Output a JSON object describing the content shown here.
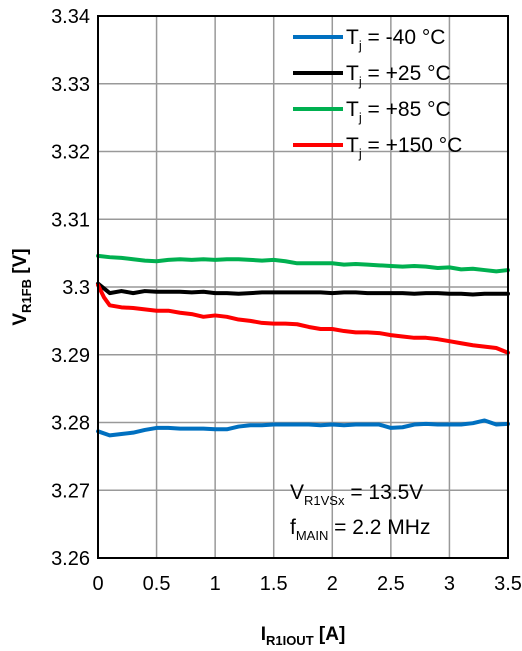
{
  "chart_data": {
    "type": "line",
    "title": "",
    "xlabel": {
      "main": "I",
      "sub": "R1IOUT",
      "unit": " [A]"
    },
    "ylabel": {
      "main": "V",
      "sub": "R1FB",
      "unit": " [V]"
    },
    "xlim": [
      0,
      3.5
    ],
    "ylim": [
      3.26,
      3.34
    ],
    "x_ticks": [
      0,
      0.5,
      1,
      1.5,
      2,
      2.5,
      3,
      3.5
    ],
    "x_tick_labels": [
      "0",
      "0.5",
      "1",
      "1.5",
      "2",
      "2.5",
      "3",
      "3.5"
    ],
    "y_ticks": [
      3.26,
      3.27,
      3.28,
      3.29,
      3.3,
      3.31,
      3.32,
      3.33,
      3.34
    ],
    "y_tick_labels": [
      "3.26",
      "3.27",
      "3.28",
      "3.29",
      "3.3",
      "3.31",
      "3.32",
      "3.33",
      "3.34"
    ],
    "grid": true,
    "legend_position": "top-right",
    "annotation": {
      "line1": {
        "main": "V",
        "sub": "R1VSx",
        "rest": " = 13.5V"
      },
      "line2": {
        "main": "f",
        "sub": "MAIN",
        "rest": " = 2.2 MHz"
      }
    },
    "series": [
      {
        "name": {
          "main": "T",
          "sub": "j",
          "rest": " = -40 °C"
        },
        "color": "#0070C0",
        "points": [
          [
            0,
            3.2787
          ],
          [
            0.1,
            3.2781
          ],
          [
            0.2,
            3.2783
          ],
          [
            0.3,
            3.2785
          ],
          [
            0.4,
            3.2789
          ],
          [
            0.5,
            3.2792
          ],
          [
            0.6,
            3.2792
          ],
          [
            0.7,
            3.2791
          ],
          [
            0.8,
            3.2791
          ],
          [
            0.9,
            3.2791
          ],
          [
            1.0,
            3.279
          ],
          [
            1.1,
            3.279
          ],
          [
            1.2,
            3.2794
          ],
          [
            1.3,
            3.2796
          ],
          [
            1.4,
            3.2796
          ],
          [
            1.5,
            3.2797
          ],
          [
            1.6,
            3.2797
          ],
          [
            1.7,
            3.2797
          ],
          [
            1.8,
            3.2797
          ],
          [
            1.9,
            3.2796
          ],
          [
            2.0,
            3.2797
          ],
          [
            2.1,
            3.2796
          ],
          [
            2.2,
            3.2797
          ],
          [
            2.3,
            3.2797
          ],
          [
            2.4,
            3.2797
          ],
          [
            2.5,
            3.2792
          ],
          [
            2.6,
            3.2793
          ],
          [
            2.7,
            3.2797
          ],
          [
            2.8,
            3.2798
          ],
          [
            2.9,
            3.2797
          ],
          [
            3.0,
            3.2797
          ],
          [
            3.1,
            3.2797
          ],
          [
            3.2,
            3.2799
          ],
          [
            3.3,
            3.2803
          ],
          [
            3.4,
            3.2797
          ],
          [
            3.5,
            3.2798
          ]
        ]
      },
      {
        "name": {
          "main": "T",
          "sub": "j",
          "rest": " = +25 °C"
        },
        "color": "#000000",
        "points": [
          [
            0,
            3.3005
          ],
          [
            0.05,
            3.2998
          ],
          [
            0.1,
            3.2991
          ],
          [
            0.2,
            3.2994
          ],
          [
            0.3,
            3.2991
          ],
          [
            0.4,
            3.2994
          ],
          [
            0.5,
            3.2993
          ],
          [
            0.6,
            3.2993
          ],
          [
            0.7,
            3.2993
          ],
          [
            0.8,
            3.2992
          ],
          [
            0.9,
            3.2993
          ],
          [
            1.0,
            3.2991
          ],
          [
            1.1,
            3.2991
          ],
          [
            1.2,
            3.299
          ],
          [
            1.3,
            3.2991
          ],
          [
            1.4,
            3.2992
          ],
          [
            1.5,
            3.2992
          ],
          [
            1.6,
            3.2992
          ],
          [
            1.7,
            3.2992
          ],
          [
            1.8,
            3.2992
          ],
          [
            1.9,
            3.2992
          ],
          [
            2.0,
            3.2991
          ],
          [
            2.1,
            3.2992
          ],
          [
            2.2,
            3.2992
          ],
          [
            2.3,
            3.2991
          ],
          [
            2.4,
            3.2991
          ],
          [
            2.5,
            3.2991
          ],
          [
            2.6,
            3.2991
          ],
          [
            2.7,
            3.299
          ],
          [
            2.8,
            3.2991
          ],
          [
            2.9,
            3.2991
          ],
          [
            3.0,
            3.299
          ],
          [
            3.1,
            3.299
          ],
          [
            3.2,
            3.2989
          ],
          [
            3.3,
            3.299
          ],
          [
            3.4,
            3.299
          ],
          [
            3.5,
            3.299
          ]
        ]
      },
      {
        "name": {
          "main": "T",
          "sub": "j",
          "rest": " = +85 °C"
        },
        "color": "#00B050",
        "points": [
          [
            0,
            3.3046
          ],
          [
            0.1,
            3.3044
          ],
          [
            0.2,
            3.3043
          ],
          [
            0.3,
            3.3041
          ],
          [
            0.4,
            3.3039
          ],
          [
            0.5,
            3.3038
          ],
          [
            0.6,
            3.304
          ],
          [
            0.7,
            3.3041
          ],
          [
            0.8,
            3.304
          ],
          [
            0.9,
            3.3041
          ],
          [
            1.0,
            3.304
          ],
          [
            1.1,
            3.3041
          ],
          [
            1.2,
            3.3041
          ],
          [
            1.3,
            3.304
          ],
          [
            1.4,
            3.3039
          ],
          [
            1.5,
            3.304
          ],
          [
            1.6,
            3.3038
          ],
          [
            1.7,
            3.3035
          ],
          [
            1.8,
            3.3035
          ],
          [
            1.9,
            3.3035
          ],
          [
            2.0,
            3.3035
          ],
          [
            2.1,
            3.3033
          ],
          [
            2.2,
            3.3034
          ],
          [
            2.3,
            3.3033
          ],
          [
            2.4,
            3.3032
          ],
          [
            2.5,
            3.3031
          ],
          [
            2.6,
            3.303
          ],
          [
            2.7,
            3.3031
          ],
          [
            2.8,
            3.303
          ],
          [
            2.9,
            3.3028
          ],
          [
            3.0,
            3.3029
          ],
          [
            3.1,
            3.3026
          ],
          [
            3.2,
            3.3027
          ],
          [
            3.3,
            3.3025
          ],
          [
            3.4,
            3.3023
          ],
          [
            3.5,
            3.3025
          ]
        ]
      },
      {
        "name": {
          "main": "T",
          "sub": "j",
          "rest": " = +150 °C"
        },
        "color": "#FF0000",
        "points": [
          [
            0,
            3.3003
          ],
          [
            0.05,
            3.2985
          ],
          [
            0.1,
            3.2973
          ],
          [
            0.2,
            3.297
          ],
          [
            0.3,
            3.2969
          ],
          [
            0.4,
            3.2967
          ],
          [
            0.5,
            3.2965
          ],
          [
            0.6,
            3.2965
          ],
          [
            0.7,
            3.2962
          ],
          [
            0.8,
            3.296
          ],
          [
            0.9,
            3.2956
          ],
          [
            1.0,
            3.2958
          ],
          [
            1.1,
            3.2956
          ],
          [
            1.2,
            3.2952
          ],
          [
            1.3,
            3.295
          ],
          [
            1.4,
            3.2947
          ],
          [
            1.5,
            3.2946
          ],
          [
            1.6,
            3.2946
          ],
          [
            1.7,
            3.2945
          ],
          [
            1.8,
            3.2941
          ],
          [
            1.9,
            3.2938
          ],
          [
            2.0,
            3.2938
          ],
          [
            2.1,
            3.2935
          ],
          [
            2.2,
            3.2933
          ],
          [
            2.3,
            3.2933
          ],
          [
            2.4,
            3.2932
          ],
          [
            2.5,
            3.2929
          ],
          [
            2.6,
            3.2927
          ],
          [
            2.7,
            3.2925
          ],
          [
            2.8,
            3.2925
          ],
          [
            2.9,
            3.2923
          ],
          [
            3.0,
            3.292
          ],
          [
            3.1,
            3.2917
          ],
          [
            3.2,
            3.2914
          ],
          [
            3.3,
            3.2912
          ],
          [
            3.4,
            3.291
          ],
          [
            3.5,
            3.2903
          ]
        ]
      }
    ]
  }
}
